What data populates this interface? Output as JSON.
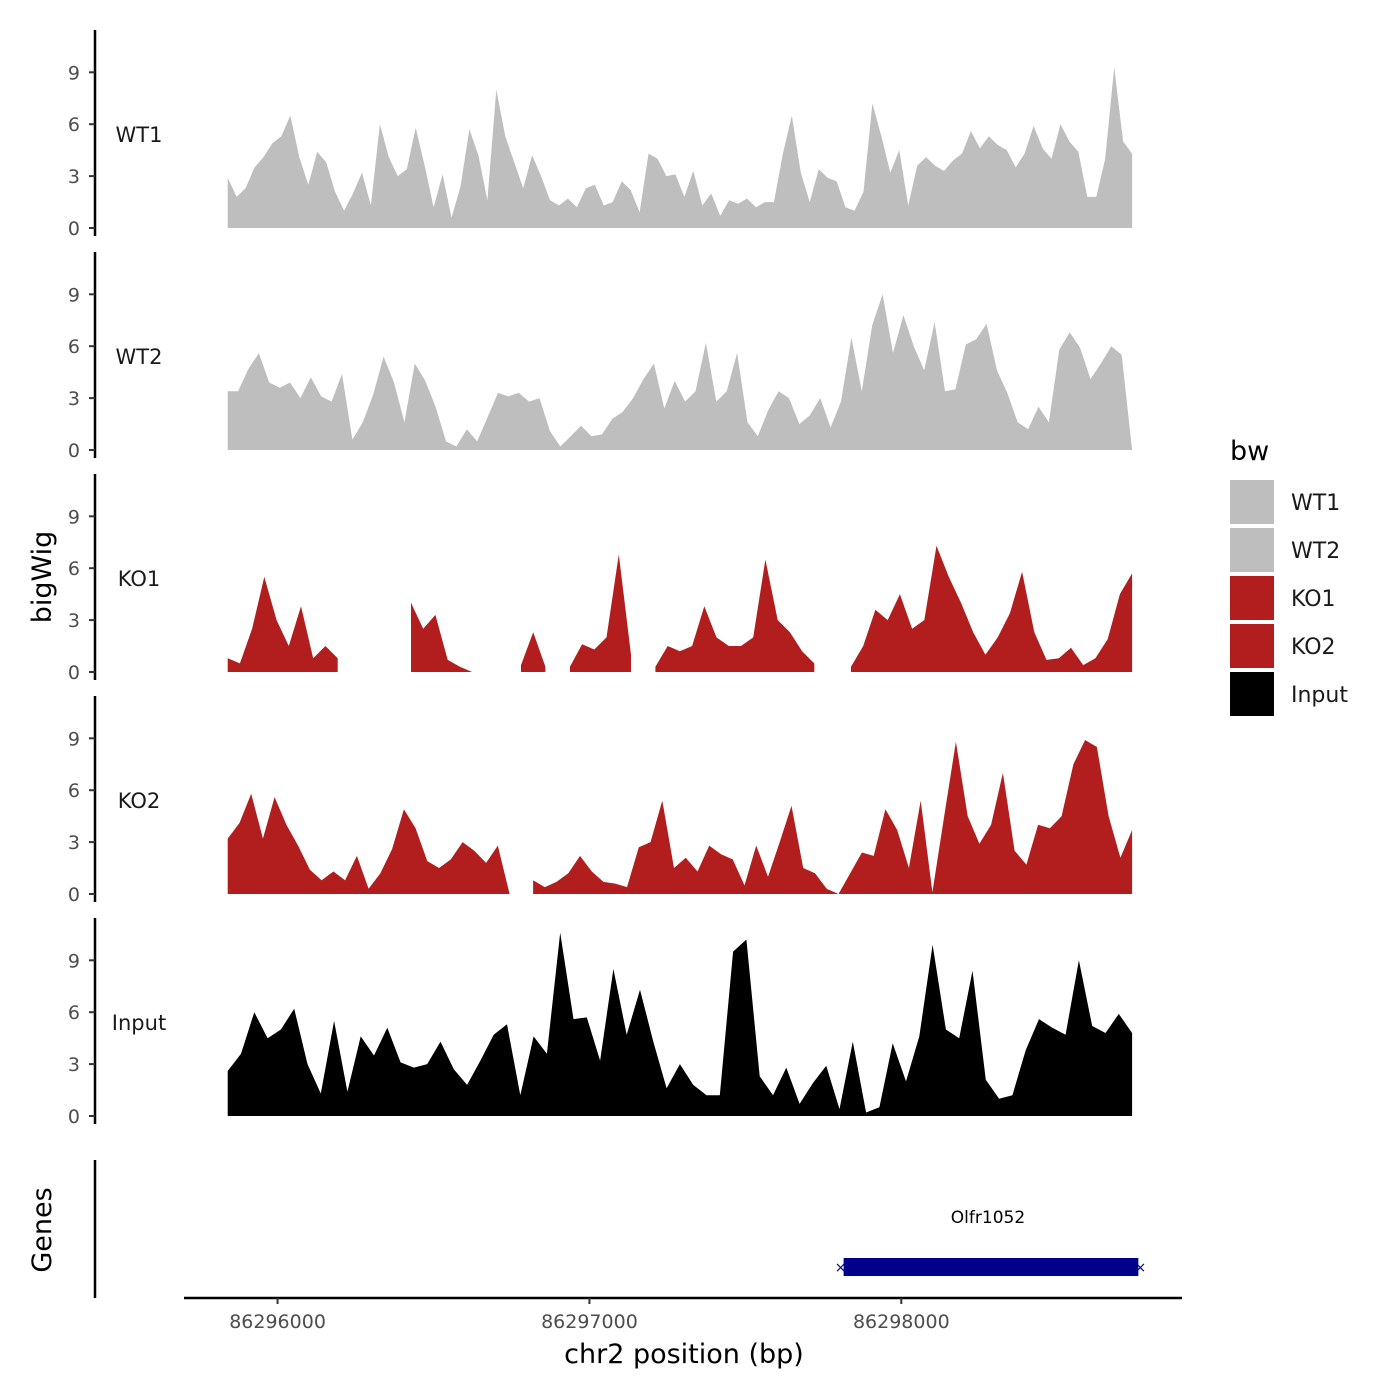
{
  "chart_data": {
    "type": "area",
    "title": "",
    "xlabel": "chr2 position (bp)",
    "ylabel": "bigWig",
    "genes_label": "Genes",
    "legend_title": "bw",
    "legend_position": "right",
    "grid": false,
    "xlim": [
      86295700,
      86298900
    ],
    "x_start": 86295840,
    "x_end": 86298740,
    "ylim": [
      0,
      11.5
    ],
    "y_ticks": [
      0,
      3,
      6,
      9
    ],
    "x_ticks": [
      {
        "value": 86296000,
        "label": "86296000"
      },
      {
        "value": 86297000,
        "label": "86297000"
      },
      {
        "value": 86298000,
        "label": "86298000"
      }
    ],
    "series": [
      {
        "name": "WT1",
        "color": "#bebebe",
        "values": [
          2.9,
          1.8,
          2.3,
          3.5,
          4.1,
          4.9,
          5.3,
          6.5,
          4.1,
          2.5,
          4.4,
          3.8,
          2.1,
          1.0,
          2.0,
          3.2,
          1.3,
          6.0,
          4.1,
          3.0,
          3.4,
          5.8,
          3.6,
          1.2,
          3.1,
          0.6,
          2.4,
          5.7,
          4.2,
          1.6,
          8.0,
          5.3,
          3.8,
          2.3,
          4.2,
          3.0,
          1.6,
          1.3,
          1.7,
          1.2,
          2.3,
          2.5,
          1.3,
          1.5,
          2.7,
          2.2,
          0.9,
          4.3,
          4.0,
          3.0,
          3.1,
          1.8,
          3.3,
          1.3,
          2.0,
          0.7,
          1.6,
          1.4,
          1.7,
          1.2,
          1.5,
          1.5,
          4.3,
          6.5,
          3.2,
          1.5,
          3.4,
          2.9,
          2.7,
          1.2,
          1.0,
          2.1,
          7.2,
          5.3,
          3.2,
          4.5,
          1.3,
          3.6,
          4.1,
          3.6,
          3.3,
          3.9,
          4.3,
          5.6,
          4.6,
          5.3,
          4.8,
          4.5,
          3.5,
          4.3,
          5.9,
          4.6,
          4.0,
          6.0,
          5.0,
          4.4,
          1.8,
          1.8,
          4.0,
          9.3,
          5.0,
          4.3
        ]
      },
      {
        "name": "WT2",
        "color": "#bebebe",
        "values": [
          3.4,
          3.4,
          4.7,
          5.6,
          3.9,
          3.6,
          3.9,
          3.0,
          4.2,
          3.1,
          2.8,
          4.4,
          0.6,
          1.6,
          3.2,
          5.4,
          3.9,
          1.6,
          5.0,
          4.0,
          2.5,
          0.5,
          0.2,
          1.2,
          0.5,
          1.9,
          3.3,
          3.1,
          3.3,
          2.8,
          3.0,
          1.1,
          0.2,
          0.8,
          1.4,
          0.8,
          0.9,
          1.8,
          2.2,
          3.0,
          4.1,
          5.0,
          2.4,
          4.0,
          2.8,
          3.4,
          6.2,
          2.8,
          3.4,
          5.6,
          1.6,
          0.8,
          2.3,
          3.4,
          3.0,
          1.5,
          2.0,
          3.0,
          1.3,
          2.8,
          6.5,
          3.4,
          7.2,
          9.0,
          5.6,
          7.8,
          6.0,
          4.6,
          7.4,
          3.4,
          3.5,
          6.1,
          6.4,
          7.3,
          4.6,
          3.3,
          1.6,
          1.2,
          2.5,
          1.6,
          5.8,
          6.8,
          5.9,
          4.1,
          5.0,
          6.0,
          5.5,
          0.0
        ]
      },
      {
        "name": "KO1",
        "color": "#b21e1e",
        "values": [
          0.8,
          0.5,
          2.5,
          5.5,
          3.0,
          1.5,
          3.8,
          0.8,
          1.5,
          0.8,
          null,
          null,
          null,
          null,
          null,
          4.0,
          2.5,
          3.3,
          0.7,
          0.3,
          0.0,
          null,
          null,
          null,
          0.4,
          2.3,
          0.3,
          null,
          0.3,
          1.6,
          1.3,
          2.0,
          6.8,
          1.0,
          null,
          0.3,
          1.5,
          1.2,
          1.5,
          3.8,
          2.0,
          1.5,
          1.5,
          2.0,
          6.5,
          3.0,
          2.3,
          1.2,
          0.5,
          null,
          null,
          0.3,
          1.5,
          3.6,
          3.0,
          4.5,
          2.5,
          3.0,
          7.3,
          5.5,
          4.0,
          2.3,
          1.0,
          2.0,
          3.4,
          5.8,
          2.3,
          0.7,
          0.8,
          1.4,
          0.4,
          0.8,
          1.9,
          4.5,
          5.7
        ]
      },
      {
        "name": "KO2",
        "color": "#b21e1e",
        "values": [
          3.2,
          4.1,
          5.8,
          3.2,
          5.6,
          4.0,
          2.8,
          1.4,
          0.8,
          1.3,
          0.8,
          2.2,
          0.3,
          1.2,
          2.6,
          4.9,
          3.8,
          1.9,
          1.5,
          2.0,
          3.0,
          2.5,
          1.8,
          2.8,
          0.0,
          null,
          0.8,
          0.4,
          0.7,
          1.2,
          2.2,
          1.3,
          0.7,
          0.6,
          0.4,
          2.7,
          3.0,
          5.4,
          1.5,
          2.1,
          1.3,
          2.8,
          2.3,
          2.0,
          0.5,
          2.8,
          1.0,
          3.0,
          5.1,
          1.5,
          1.2,
          0.3,
          0.0,
          1.2,
          2.4,
          2.2,
          4.9,
          3.7,
          1.5,
          5.4,
          0.1,
          4.5,
          8.8,
          4.5,
          2.9,
          4.0,
          7.0,
          2.5,
          1.7,
          4.0,
          3.8,
          4.5,
          7.5,
          8.9,
          8.5,
          4.5,
          2.1,
          3.7
        ]
      },
      {
        "name": "Input",
        "color": "#000000",
        "values": [
          2.6,
          3.6,
          6.0,
          4.5,
          5.0,
          6.2,
          3.0,
          1.3,
          5.5,
          1.4,
          4.6,
          3.5,
          5.1,
          3.1,
          2.8,
          3.0,
          4.3,
          2.7,
          1.8,
          3.2,
          4.7,
          5.3,
          1.2,
          4.6,
          3.6,
          10.6,
          5.6,
          5.7,
          3.2,
          8.5,
          4.7,
          7.3,
          4.3,
          1.6,
          3.0,
          1.8,
          1.2,
          1.2,
          9.5,
          10.2,
          2.3,
          1.2,
          2.8,
          0.7,
          1.9,
          2.9,
          0.4,
          4.3,
          0.2,
          0.5,
          4.2,
          2.0,
          4.6,
          9.9,
          5.0,
          4.5,
          8.4,
          2.1,
          1.0,
          1.2,
          3.8,
          5.6,
          5.1,
          4.7,
          9.0,
          5.2,
          4.8,
          5.9,
          4.8
        ]
      }
    ],
    "genes": [
      {
        "name": "Olfr1052",
        "start": 86297815,
        "end": 86298760,
        "color": "#00008b"
      }
    ]
  }
}
